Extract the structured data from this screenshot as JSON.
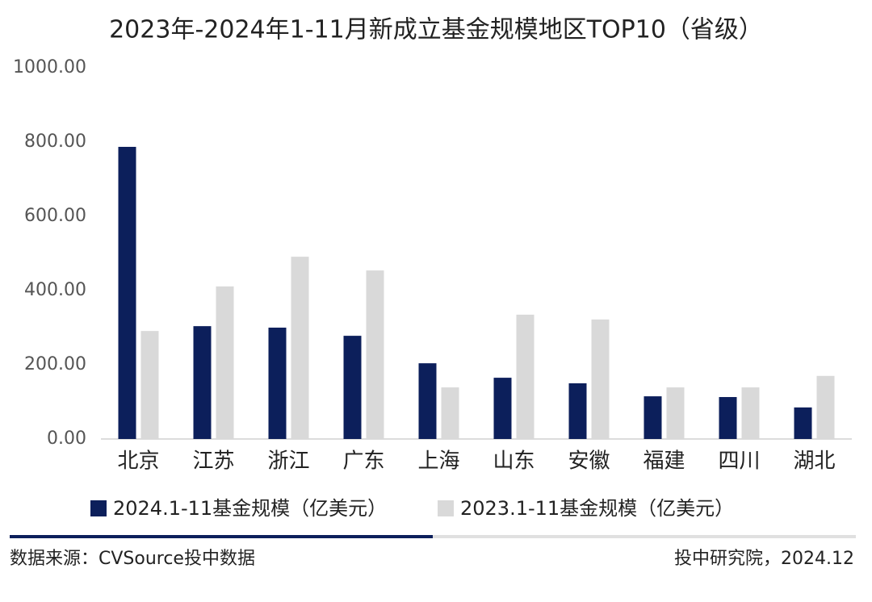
{
  "chart_data": {
    "type": "bar",
    "title": "2023年-2024年1-11月新成立基金规模地区TOP10（省级）",
    "categories": [
      "北京",
      "江苏",
      "浙江",
      "广东",
      "上海",
      "山东",
      "安徽",
      "福建",
      "四川",
      "湖北"
    ],
    "series": [
      {
        "name": "2024.1-11基金规模（亿美元）",
        "color": "#0c1f5b",
        "values": [
          787,
          304,
          300,
          278,
          204,
          165,
          150,
          115,
          113,
          85
        ]
      },
      {
        "name": "2023.1-11基金规模（亿美元）",
        "color": "#d9d9d9",
        "values": [
          291,
          411,
          491,
          454,
          139,
          335,
          322,
          139,
          139,
          170
        ]
      }
    ],
    "ylim": [
      0,
      1000
    ],
    "yticks": [
      {
        "value": 0,
        "label": "0.00"
      },
      {
        "value": 200,
        "label": "200.00"
      },
      {
        "value": 400,
        "label": "400.00"
      },
      {
        "value": 600,
        "label": "600.00"
      },
      {
        "value": 800,
        "label": "800.00"
      },
      {
        "value": 1000,
        "label": "1000.00"
      }
    ],
    "grid": false
  },
  "footer": {
    "source": "数据来源：CVSource投中数据",
    "credit": "投中研究院，2024.12"
  }
}
